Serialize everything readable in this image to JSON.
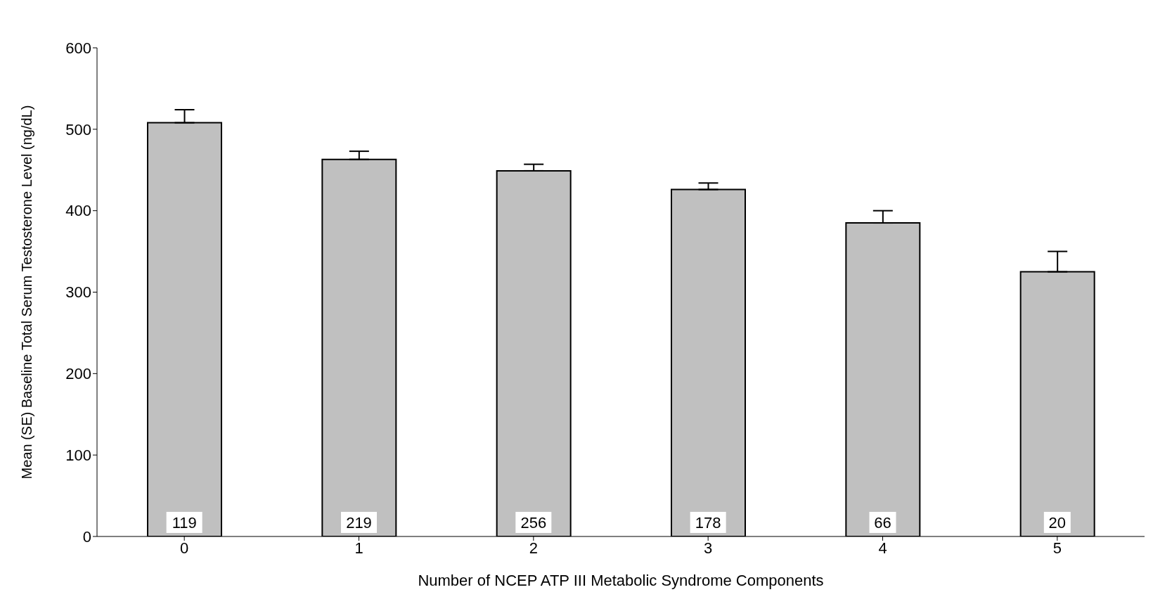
{
  "chart_data": {
    "type": "bar",
    "xlabel": "Number of NCEP ATP III Metabolic Syndrome Components",
    "ylabel": "Mean (SE) Baseline Total Serum Testosterone Level (ng/dL)",
    "categories": [
      "0",
      "1",
      "2",
      "3",
      "4",
      "5"
    ],
    "values": [
      508,
      463,
      449,
      426,
      385,
      325
    ],
    "errors": [
      [
        508,
        524
      ],
      [
        463,
        473
      ],
      [
        449,
        457
      ],
      [
        426,
        434
      ],
      [
        385,
        400
      ],
      [
        325,
        350
      ]
    ],
    "color": "#c0c0c0",
    "ylim": [
      0,
      600
    ],
    "yticks": [
      0,
      100,
      200,
      300,
      400,
      500,
      600
    ],
    "grid": false,
    "annotations": [
      "119",
      "219",
      "256",
      "178",
      "66",
      "20"
    ]
  }
}
